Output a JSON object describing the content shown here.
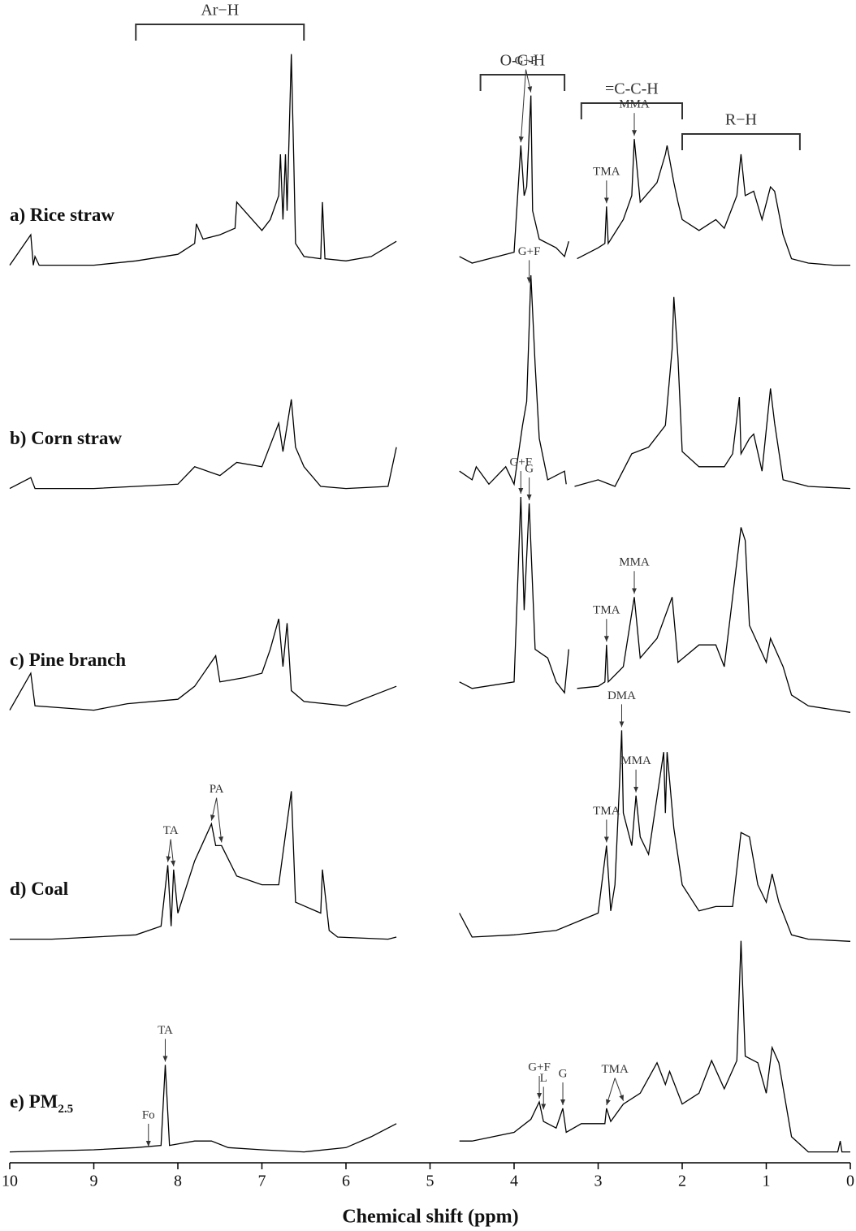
{
  "chart_data": {
    "type": "line",
    "xlabel": "Chemical shift (ppm)",
    "xlim": [
      10,
      0
    ],
    "xticks": [
      10,
      9,
      8,
      7,
      6,
      5,
      4,
      3,
      2,
      1,
      0
    ],
    "ylim": [
      0,
      100
    ],
    "color": "#000000",
    "brackets": [
      {
        "label": "Ar−H",
        "xlim": [
          8.5,
          6.5
        ]
      },
      {
        "label": "O-C-H",
        "xlim": [
          4.4,
          3.4
        ]
      },
      {
        "label": "=C-C-H",
        "xlim": [
          3.2,
          2.0
        ]
      },
      {
        "label": "R−H",
        "xlim": [
          2.0,
          0.6
        ]
      }
    ],
    "series": [
      {
        "name": "a) Rice straw",
        "x": [
          10.0,
          9.75,
          9.72,
          9.7,
          9.65,
          9.0,
          8.5,
          8.0,
          7.8,
          7.78,
          7.7,
          7.5,
          7.32,
          7.3,
          7.0,
          6.9,
          6.8,
          6.78,
          6.75,
          6.72,
          6.7,
          6.65,
          6.62,
          6.6,
          6.5,
          6.3,
          6.28,
          6.25,
          6.0,
          5.7,
          5.4,
          5.35,
          4.65,
          4.5,
          4.0,
          3.92,
          3.88,
          3.85,
          3.8,
          3.78,
          3.7,
          3.5,
          3.4,
          3.35,
          3.3,
          3.25,
          3.0,
          2.92,
          2.9,
          2.88,
          2.7,
          2.6,
          2.57,
          2.5,
          2.3,
          2.2,
          2.18,
          2.1,
          2.05,
          2.0,
          1.8,
          1.6,
          1.5,
          1.35,
          1.3,
          1.25,
          1.15,
          1.05,
          0.95,
          0.9,
          0.8,
          0.7,
          0.5,
          0.2,
          0
        ],
        "values": [
          2,
          16,
          2,
          6,
          2,
          2,
          4,
          7,
          12,
          21,
          14,
          16,
          19,
          31,
          18,
          23,
          34,
          53,
          23,
          53,
          27,
          99,
          49,
          12,
          6,
          5,
          31,
          5,
          4,
          6,
          13,
          null,
          6,
          3,
          8,
          57,
          34,
          38,
          80,
          27,
          14,
          10,
          6,
          13,
          null,
          5,
          10,
          12,
          29,
          12,
          23,
          34,
          60,
          31,
          40,
          53,
          57,
          40,
          31,
          23,
          18,
          23,
          19,
          34,
          53,
          34,
          36,
          23,
          38,
          36,
          16,
          5,
          3,
          2,
          2
        ],
        "annotations": [
          {
            "text": "G+F",
            "x": [
              3.92,
              3.8
            ],
            "y": [
              57,
              80
            ]
          },
          {
            "text": "MMA",
            "x": [
              2.57
            ],
            "y": [
              60
            ]
          },
          {
            "text": "TMA",
            "x": [
              2.9
            ],
            "y": [
              29
            ]
          }
        ]
      },
      {
        "name": "b) Corn straw",
        "x": [
          10.0,
          9.75,
          9.7,
          9.0,
          8.5,
          8.0,
          7.8,
          7.5,
          7.3,
          7.0,
          6.8,
          6.75,
          6.65,
          6.6,
          6.5,
          6.3,
          6.0,
          5.5,
          5.4,
          5.35,
          4.65,
          4.5,
          4.45,
          4.3,
          4.1,
          4.0,
          3.9,
          3.85,
          3.8,
          3.75,
          3.7,
          3.6,
          3.4,
          3.38,
          3.32,
          3.28,
          3.0,
          2.8,
          2.6,
          2.4,
          2.2,
          2.12,
          2.1,
          2.05,
          2.0,
          1.8,
          1.5,
          1.4,
          1.32,
          1.3,
          1.2,
          1.15,
          1.05,
          0.95,
          0.9,
          0.8,
          0.5,
          0
        ],
        "values": [
          2,
          7,
          2,
          2,
          3,
          4,
          12,
          8,
          14,
          12,
          32,
          19,
          43,
          21,
          12,
          3,
          2,
          3,
          21,
          null,
          10,
          6,
          12,
          4,
          12,
          4,
          31,
          42,
          100,
          59,
          25,
          6,
          10,
          4,
          null,
          3,
          6,
          3,
          18,
          21,
          31,
          66,
          90,
          62,
          19,
          12,
          12,
          18,
          44,
          18,
          25,
          27,
          10,
          48,
          32,
          6,
          3,
          2
        ],
        "annotations": [
          {
            "text": "G+F",
            "x": [
              3.82
            ],
            "y": [
              95
            ]
          }
        ]
      },
      {
        "name": "c) Pine branch",
        "x": [
          10.0,
          9.75,
          9.7,
          9.0,
          8.6,
          8.0,
          7.8,
          7.55,
          7.5,
          7.2,
          7.0,
          6.9,
          6.8,
          6.75,
          6.7,
          6.65,
          6.5,
          6.0,
          5.4,
          5.35,
          4.65,
          4.5,
          4.0,
          3.92,
          3.88,
          3.82,
          3.75,
          3.6,
          3.5,
          3.4,
          3.35,
          3.3,
          3.25,
          3.0,
          2.92,
          2.9,
          2.88,
          2.7,
          2.57,
          2.5,
          2.3,
          2.12,
          2.05,
          1.8,
          1.6,
          1.5,
          1.3,
          1.25,
          1.2,
          1.0,
          0.95,
          0.8,
          0.7,
          0.5,
          0
        ],
        "values": [
          2,
          19,
          4,
          2,
          5,
          7,
          13,
          27,
          15,
          17,
          19,
          30,
          44,
          22,
          42,
          11,
          6,
          4,
          13,
          null,
          15,
          12,
          15,
          100,
          48,
          97,
          30,
          26,
          15,
          10,
          30,
          null,
          12,
          13,
          15,
          32,
          15,
          22,
          54,
          26,
          35,
          54,
          24,
          32,
          32,
          22,
          86,
          80,
          41,
          24,
          35,
          22,
          9,
          4,
          1
        ],
        "annotations": [
          {
            "text": "G+F",
            "x": [
              3.92
            ],
            "y": [
              100
            ]
          },
          {
            "text": "G",
            "x": [
              3.82
            ],
            "y": [
              97
            ]
          },
          {
            "text": "MMA",
            "x": [
              2.57
            ],
            "y": [
              54
            ]
          },
          {
            "text": "TMA",
            "x": [
              2.9
            ],
            "y": [
              32
            ]
          }
        ]
      },
      {
        "name": "d) Coal",
        "x": [
          10.0,
          9.5,
          9.0,
          8.5,
          8.2,
          8.12,
          8.08,
          8.05,
          8.0,
          7.8,
          7.6,
          7.55,
          7.48,
          7.3,
          7.0,
          6.8,
          6.65,
          6.6,
          6.3,
          6.28,
          6.2,
          6.1,
          5.5,
          5.4,
          5.35,
          4.65,
          4.5,
          4.0,
          3.5,
          3.0,
          2.9,
          2.85,
          2.8,
          2.75,
          2.72,
          2.7,
          2.6,
          2.55,
          2.5,
          2.4,
          2.22,
          2.2,
          2.18,
          2.1,
          2.0,
          1.8,
          1.6,
          1.4,
          1.3,
          1.2,
          1.1,
          1.0,
          0.93,
          0.85,
          0.7,
          0.5,
          0
        ],
        "values": [
          2,
          2,
          3,
          4,
          8,
          36,
          8,
          34,
          14,
          38,
          55,
          45,
          45,
          31,
          27,
          27,
          70,
          19,
          14,
          34,
          6,
          3,
          2,
          3,
          null,
          14,
          3,
          4,
          6,
          14,
          45,
          15,
          27,
          70,
          98,
          60,
          45,
          68,
          49,
          41,
          88,
          60,
          88,
          53,
          27,
          15,
          17,
          17,
          51,
          49,
          27,
          19,
          32,
          19,
          4,
          2,
          1
        ],
        "annotations": [
          {
            "text": "TA",
            "x": [
              8.12,
              8.05
            ],
            "y": [
              36,
              34
            ]
          },
          {
            "text": "PA",
            "x": [
              7.6,
              7.48
            ],
            "y": [
              55,
              45
            ]
          },
          {
            "text": "DMA",
            "x": [
              2.72
            ],
            "y": [
              98
            ]
          },
          {
            "text": "MMA",
            "x": [
              2.55
            ],
            "y": [
              68
            ]
          },
          {
            "text": "TMA",
            "x": [
              2.9
            ],
            "y": [
              45
            ]
          }
        ]
      },
      {
        "name": "e) PM",
        "name_sub": "2.5",
        "x": [
          10.0,
          9.0,
          8.5,
          8.2,
          8.15,
          8.1,
          7.8,
          7.6,
          7.4,
          7.0,
          6.5,
          6.0,
          5.7,
          5.4,
          5.35,
          4.65,
          4.5,
          4.0,
          3.8,
          3.7,
          3.65,
          3.5,
          3.42,
          3.38,
          3.2,
          2.92,
          2.9,
          2.85,
          2.7,
          2.5,
          2.3,
          2.2,
          2.15,
          2.0,
          1.8,
          1.65,
          1.5,
          1.35,
          1.3,
          1.25,
          1.1,
          1.0,
          0.93,
          0.85,
          0.7,
          0.5,
          0.15,
          0.12,
          0.1,
          0
        ],
        "values": [
          2,
          3,
          4,
          5,
          42,
          5,
          7,
          7,
          4,
          3,
          2,
          4,
          9,
          15,
          null,
          7,
          7,
          11,
          17,
          25,
          16,
          13,
          22,
          11,
          15,
          15,
          22,
          16,
          24,
          29,
          43,
          33,
          39,
          24,
          29,
          44,
          31,
          44,
          99,
          46,
          43,
          29,
          50,
          43,
          9,
          2,
          2,
          7,
          2,
          2
        ],
        "annotations": [
          {
            "text": "Fo",
            "x": [
              8.35
            ],
            "y": [
              3
            ]
          },
          {
            "text": "TA",
            "x": [
              8.15
            ],
            "y": [
              42
            ]
          },
          {
            "text": "G+F",
            "x": [
              3.7
            ],
            "y": [
              25
            ]
          },
          {
            "text": "L",
            "x": [
              3.65
            ],
            "y": [
              20
            ]
          },
          {
            "text": "G",
            "x": [
              3.42
            ],
            "y": [
              22
            ]
          },
          {
            "text": "TMA",
            "x": [
              2.9,
              2.7
            ],
            "y": [
              22,
              24
            ]
          }
        ]
      }
    ]
  }
}
